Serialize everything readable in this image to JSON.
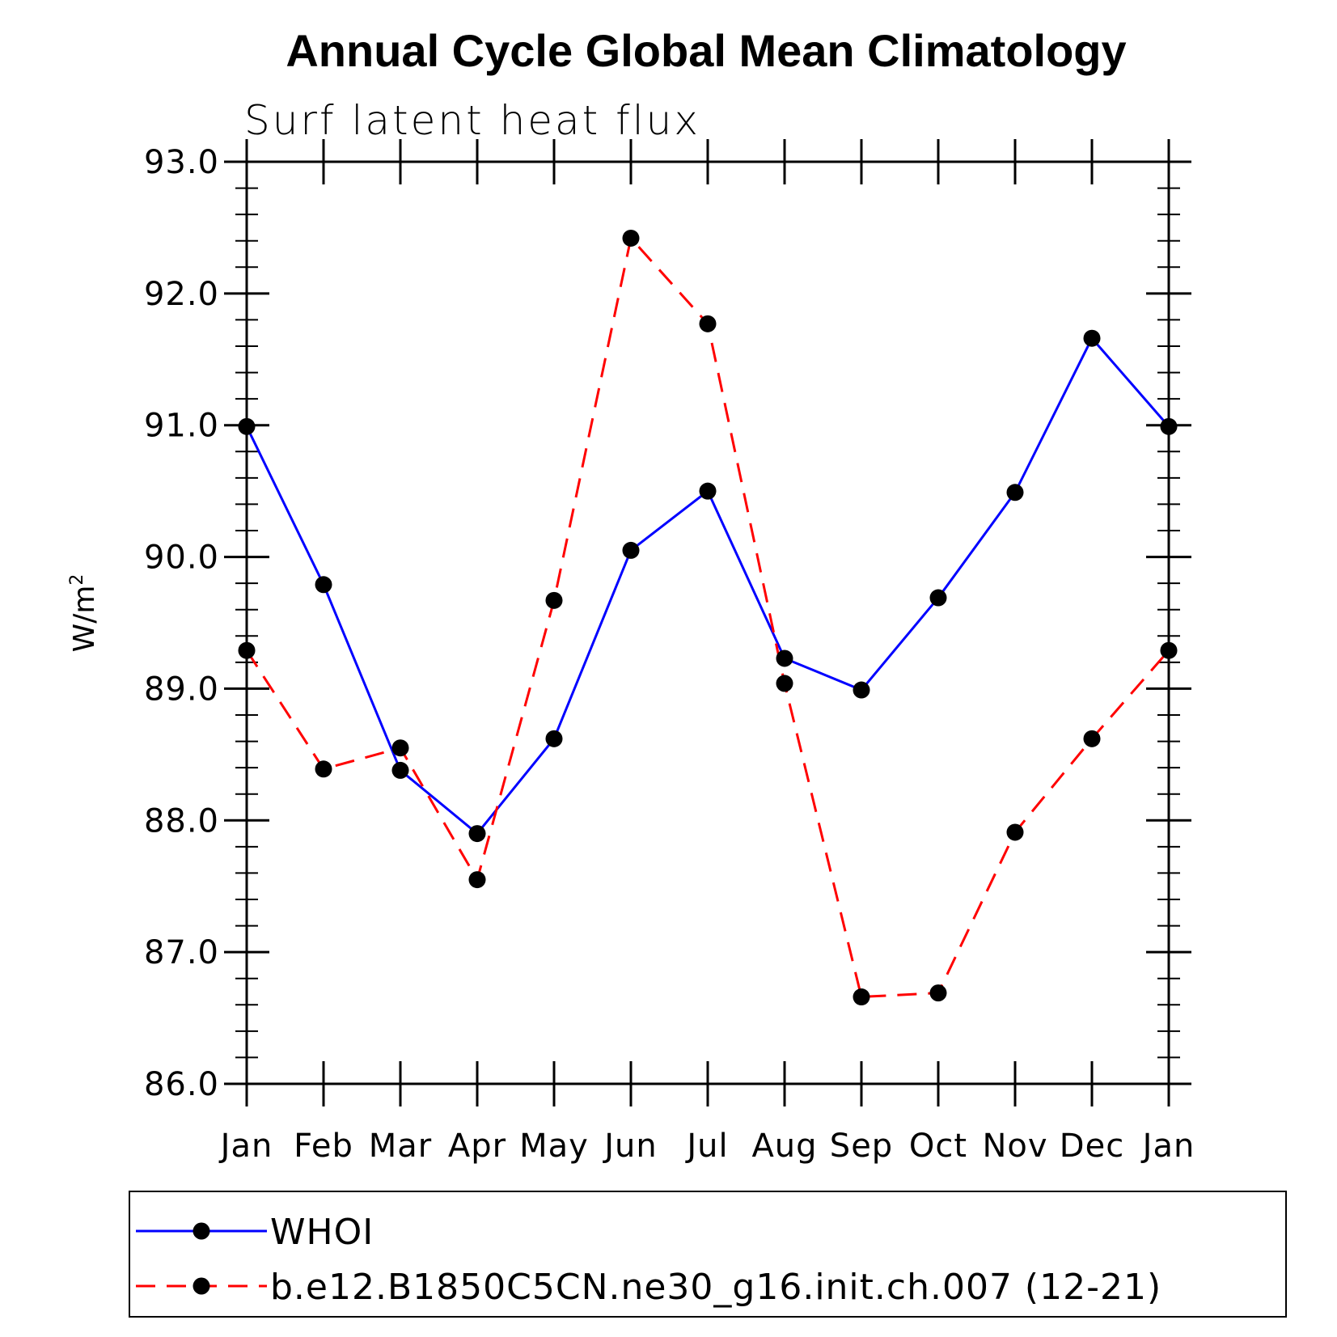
{
  "chart_data": {
    "type": "line",
    "title": "Annual Cycle Global Mean Climatology",
    "subtitle": "Surf latent heat flux",
    "ylabel": "W/m",
    "ylabel_superscript": "2",
    "ylim": [
      86.0,
      93.0
    ],
    "yticks": [
      "86.0",
      "87.0",
      "88.0",
      "89.0",
      "90.0",
      "91.0",
      "92.0",
      "93.0"
    ],
    "categories": [
      "Jan",
      "Feb",
      "Mar",
      "Apr",
      "May",
      "Jun",
      "Jul",
      "Aug",
      "Sep",
      "Oct",
      "Nov",
      "Dec",
      "Jan"
    ],
    "series": [
      {
        "name": "WHOI",
        "color": "#0000ff",
        "dash": "solid",
        "values": [
          90.99,
          89.79,
          88.38,
          87.9,
          88.62,
          90.05,
          90.5,
          89.23,
          88.99,
          89.69,
          90.49,
          91.66,
          90.99
        ]
      },
      {
        "name": "b.e12.B1850C5CN.ne30_g16.init.ch.007 (12-21)",
        "color": "#ff0000",
        "dash": "dashed",
        "values": [
          89.29,
          88.39,
          88.55,
          87.55,
          89.67,
          92.42,
          91.77,
          89.04,
          86.66,
          86.69,
          87.91,
          88.62,
          89.29
        ]
      }
    ],
    "marker_color": "#000000",
    "legend": "bottom"
  }
}
